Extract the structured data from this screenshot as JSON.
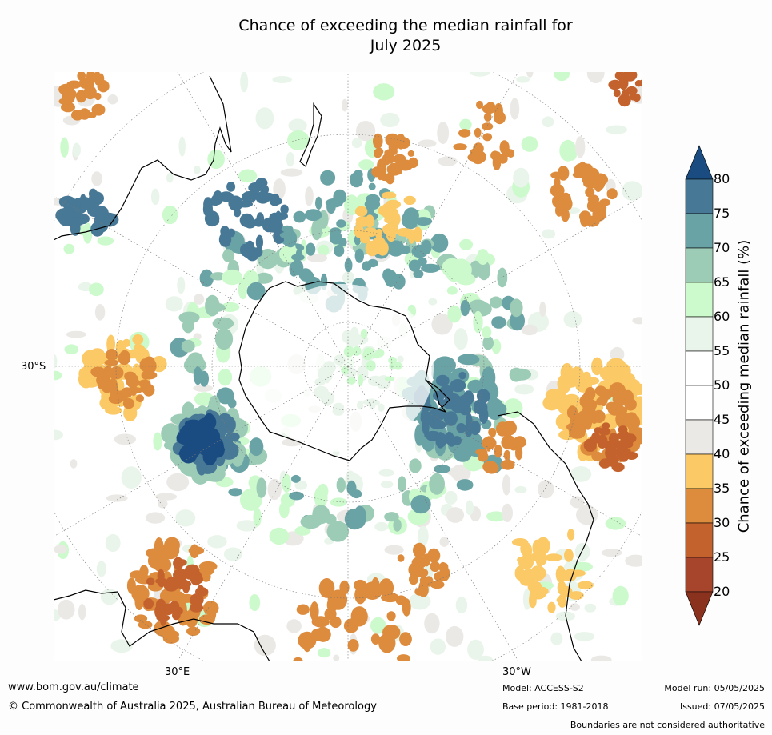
{
  "title_line1": "Chance of exceeding the median rainfall for",
  "title_line2": "July 2025",
  "map": {
    "labels": {
      "lat": "30°S",
      "lon_east": "30°E",
      "lon_west": "30°W"
    },
    "blob_colors": {
      "very_dry": "#a6452b",
      "dry": "#c4622d",
      "moderate_dry": "#dd8b3c",
      "slight_dry": "#fbc965",
      "neutral": "#ebe9e5",
      "slight_wet": "#e9f5ea",
      "wet": "#ccfacc",
      "moderate_wet": "#9ccbb6",
      "more_wet": "#6aa3a6",
      "very_wet": "#477896",
      "extreme_wet": "#1a4c82"
    },
    "coastline_color": "#000000"
  },
  "colorbar": {
    "label": "Chance of exceeding median rainfall (%)",
    "ticks": [
      "80",
      "75",
      "70",
      "65",
      "60",
      "55",
      "50",
      "45",
      "40",
      "35",
      "30",
      "25",
      "20"
    ],
    "colors": [
      "#1a4c82",
      "#477896",
      "#6aa3a6",
      "#9ccbb6",
      "#ccfacc",
      "#e9f5ea",
      "#ffffff",
      "#ffffff",
      "#ebe9e5",
      "#fbc965",
      "#dd8b3c",
      "#c4622d",
      "#a6452b",
      "#8a321d"
    ]
  },
  "footer": {
    "url": "www.bom.gov.au/climate",
    "copyright": "© Commonwealth of Australia 2025, Australian Bureau of Meteorology",
    "model": "Model: ACCESS-S2",
    "base_period": "Base period: 1981-2018",
    "model_run": "Model run: 05/05/2025",
    "issued": "Issued: 07/05/2025",
    "disclaimer": "Boundaries are not considered authoritative"
  }
}
